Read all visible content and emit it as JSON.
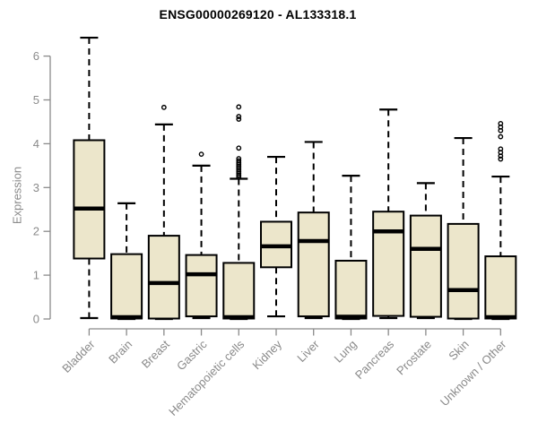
{
  "chart_data": {
    "type": "boxplot",
    "title": "ENSG00000269120 - AL133318.1",
    "xlabel": "",
    "ylabel": "Expression",
    "ylim": [
      0,
      6.5
    ],
    "yticks": [
      0,
      1,
      2,
      3,
      4,
      5,
      6
    ],
    "grid": false,
    "legend": "none",
    "colors": {
      "box_fill": "#ece6cb",
      "box_stroke": "#000000",
      "median": "#000000",
      "whisker": "#000000",
      "outlier": "#000000",
      "axis": "#8a8a8a",
      "title": "#000000",
      "background": "#ffffff"
    },
    "categories": [
      "Bladder",
      "Brain",
      "Breast",
      "Gastric",
      "Hematopoietic cells",
      "Kidney",
      "Liver",
      "Lung",
      "Pancreas",
      "Prostate",
      "Skin",
      "Unknown / Other"
    ],
    "boxes": [
      {
        "category": "Bladder",
        "whisker_low": 0.02,
        "q1": 1.38,
        "median": 2.52,
        "q3": 4.08,
        "whisker_high": 6.42,
        "outliers": []
      },
      {
        "category": "Brain",
        "whisker_low": 0.0,
        "q1": 0.01,
        "median": 0.04,
        "q3": 1.48,
        "whisker_high": 2.64,
        "outliers": []
      },
      {
        "category": "Breast",
        "whisker_low": 0.0,
        "q1": 0.01,
        "median": 0.82,
        "q3": 1.9,
        "whisker_high": 4.44,
        "outliers": [
          4.83
        ]
      },
      {
        "category": "Gastric",
        "whisker_low": 0.02,
        "q1": 0.06,
        "median": 1.02,
        "q3": 1.46,
        "whisker_high": 3.5,
        "outliers": [
          3.76
        ]
      },
      {
        "category": "Hematopoietic cells",
        "whisker_low": 0.0,
        "q1": 0.01,
        "median": 0.04,
        "q3": 1.28,
        "whisker_high": 3.2,
        "outliers": [
          3.24,
          3.28,
          3.32,
          3.36,
          3.4,
          3.44,
          3.48,
          3.52,
          3.56,
          3.61,
          3.66,
          3.9,
          4.56,
          4.62,
          4.84
        ]
      },
      {
        "category": "Kidney",
        "whisker_low": 0.06,
        "q1": 1.18,
        "median": 1.66,
        "q3": 2.22,
        "whisker_high": 3.7,
        "outliers": []
      },
      {
        "category": "Liver",
        "whisker_low": 0.02,
        "q1": 0.06,
        "median": 1.78,
        "q3": 2.43,
        "whisker_high": 4.04,
        "outliers": []
      },
      {
        "category": "Lung",
        "whisker_low": 0.0,
        "q1": 0.01,
        "median": 0.05,
        "q3": 1.33,
        "whisker_high": 3.27,
        "outliers": []
      },
      {
        "category": "Pancreas",
        "whisker_low": 0.02,
        "q1": 0.07,
        "median": 2.0,
        "q3": 2.45,
        "whisker_high": 4.78,
        "outliers": []
      },
      {
        "category": "Prostate",
        "whisker_low": 0.02,
        "q1": 0.05,
        "median": 1.6,
        "q3": 2.36,
        "whisker_high": 3.1,
        "outliers": []
      },
      {
        "category": "Skin",
        "whisker_low": 0.0,
        "q1": 0.01,
        "median": 0.66,
        "q3": 2.17,
        "whisker_high": 4.13,
        "outliers": []
      },
      {
        "category": "Unknown / Other",
        "whisker_low": 0.0,
        "q1": 0.01,
        "median": 0.04,
        "q3": 1.43,
        "whisker_high": 3.25,
        "outliers": [
          3.65,
          3.72,
          3.8,
          3.88,
          4.16,
          4.3,
          4.38,
          4.46
        ]
      }
    ]
  }
}
